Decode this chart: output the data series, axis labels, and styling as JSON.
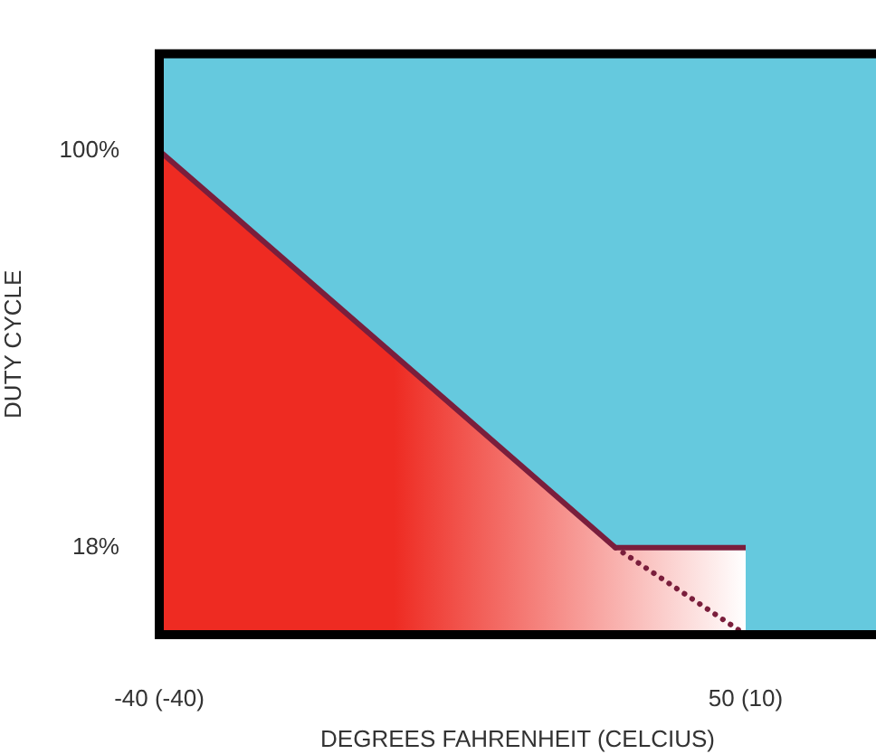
{
  "chart_data": {
    "type": "area",
    "xlabel": "DEGREES FAHRENHEIT (CELCIUS)",
    "ylabel": "DUTY CYCLE",
    "categories": [
      "-40 (-40)",
      null,
      null,
      null,
      null,
      null,
      null,
      null,
      null,
      "50 (10)",
      null,
      null
    ],
    "ylim": [
      0,
      120
    ],
    "yticks": [
      {
        "value": 100,
        "label": "100%"
      },
      {
        "value": 18,
        "label": "18%"
      }
    ],
    "grid": false,
    "legend": false,
    "marker": "none",
    "series": [
      {
        "type": "area",
        "color": "#ee2b22",
        "line_style": "solid",
        "values": [
          100,
          null,
          null,
          null,
          null,
          null,
          null,
          18,
          null,
          18,
          null,
          null
        ]
      },
      {
        "type": "line",
        "color": "#7a1e3c",
        "line_style": "dotted",
        "values": [
          null,
          null,
          null,
          null,
          null,
          null,
          null,
          18,
          null,
          0,
          null,
          null
        ]
      }
    ]
  }
}
